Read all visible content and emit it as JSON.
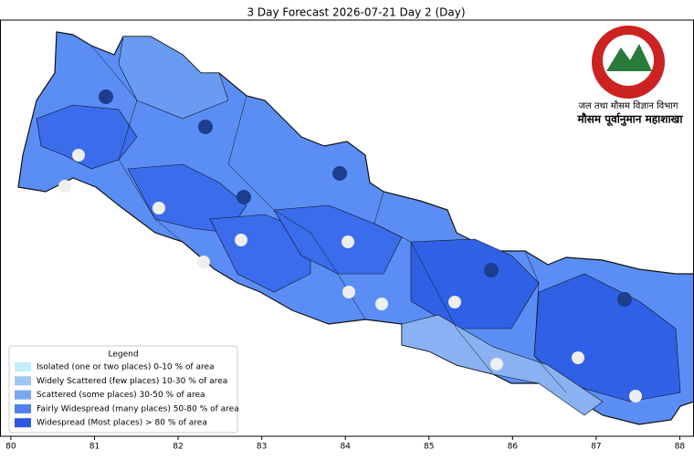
{
  "title": "3 Day Forecast 2026-07-21 Day 2 (Day)",
  "header": {
    "org": "जल तथा मौसम विज्ञान विभाग",
    "division": "मौसम पूर्वानुमान महाशाखा"
  },
  "legend": {
    "title": "Legend",
    "items": [
      {
        "label": "Isolated (one or two places)  0-10 % of area",
        "color": "#c2eefc"
      },
      {
        "label": "Widely Scattered (few places)  10-30 % of area",
        "color": "#a0c8f4"
      },
      {
        "label": "Scattered (some places)  30-50 % of area",
        "color": "#7aa6f2"
      },
      {
        "label": "Fairly Widespread (many places)  50-80 % of area",
        "color": "#4f80ee"
      },
      {
        "label": "Widespread (Most places) > 80 % of area",
        "color": "#2c56e0"
      }
    ]
  },
  "x_axis": {
    "xlim": [
      79.87,
      88.17
    ],
    "xticks": [
      80,
      81,
      82,
      83,
      84,
      85,
      86,
      87,
      88
    ]
  }
}
